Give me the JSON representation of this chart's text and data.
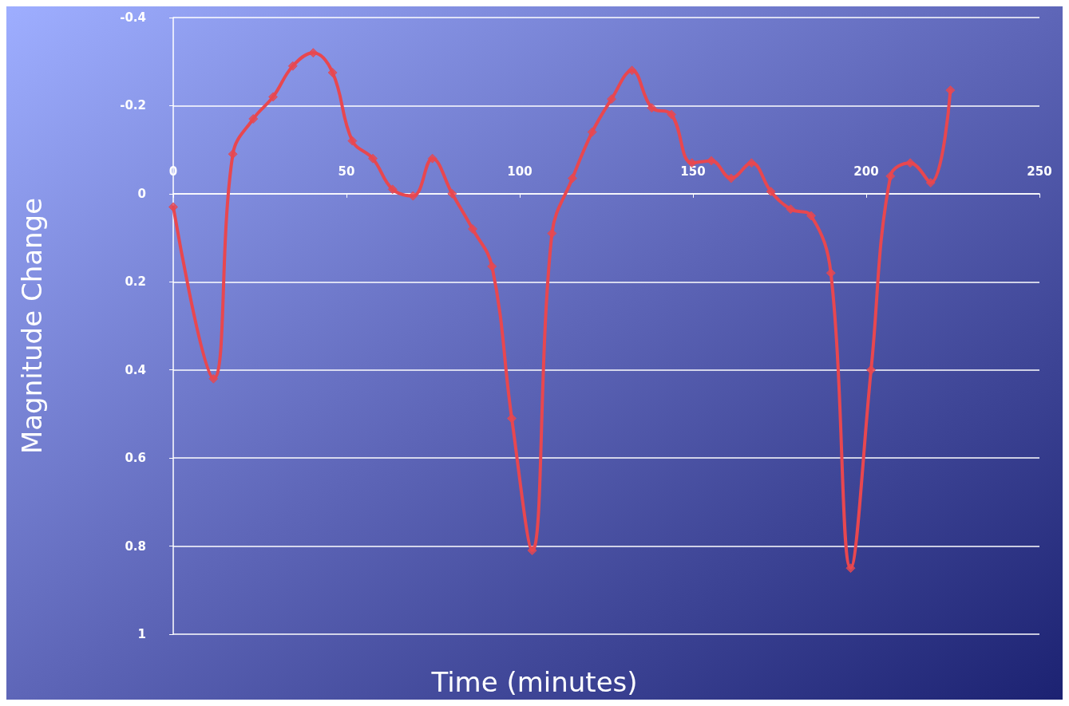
{
  "chart_data": {
    "type": "line",
    "xlabel": "Time (minutes)",
    "ylabel": "Magnitude Change",
    "x": [
      0,
      11.6,
      17.2,
      23.1,
      28.8,
      34.5,
      40.4,
      46,
      51.7,
      57.6,
      63.3,
      69.2,
      74.8,
      80.5,
      86.4,
      92,
      97.7,
      103.6,
      109.3,
      115.2,
      120.9,
      126.5,
      132.4,
      138.1,
      143.8,
      149.7,
      155.3,
      161,
      166.9,
      172.5,
      178.2,
      184.1,
      189.8,
      195.5,
      201.4,
      207,
      212.7,
      218.6,
      224.3
    ],
    "series": [
      {
        "color": "#e8474f",
        "values": [
          0.03,
          0.42,
          -0.09,
          -0.17,
          -0.22,
          -0.29,
          -0.32,
          -0.275,
          -0.12,
          -0.08,
          -0.01,
          0.005,
          -0.08,
          0,
          0.08,
          0.165,
          0.51,
          0.81,
          0.09,
          -0.035,
          -0.14,
          -0.215,
          -0.28,
          -0.195,
          -0.18,
          -0.07,
          -0.075,
          -0.035,
          -0.07,
          -0.005,
          0.035,
          0.05,
          0.18,
          0.85,
          0.4,
          -0.04,
          -0.07,
          -0.025,
          -0.235
        ]
      }
    ],
    "xlim": [
      0,
      250
    ],
    "xticks": [
      0,
      50,
      100,
      150,
      200,
      250
    ],
    "ylim": [
      1,
      -0.4
    ],
    "yticks": [
      -0.4,
      -0.2,
      0,
      0.2,
      0.4,
      0.6,
      0.8,
      1
    ],
    "grid": "y",
    "marker": "diamond",
    "line_style": "solid"
  }
}
